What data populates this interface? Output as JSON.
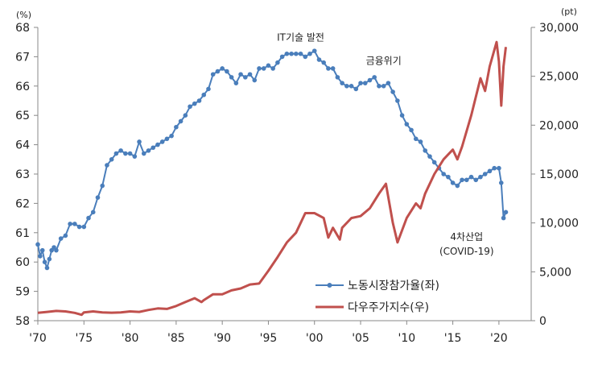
{
  "chart_data": {
    "type": "line",
    "left_unit": "(%)",
    "right_unit": "(pt)",
    "x_ticks": [
      "'70",
      "'75",
      "'80",
      "'85",
      "'90",
      "'95",
      "'00",
      "'05",
      "'10",
      "'15",
      "'20"
    ],
    "x_range": [
      1970,
      2023.5
    ],
    "y_left": {
      "range": [
        58,
        68
      ],
      "ticks": [
        "58",
        "59",
        "60",
        "61",
        "62",
        "63",
        "64",
        "65",
        "66",
        "67",
        "68"
      ]
    },
    "y_right": {
      "range": [
        0,
        30000
      ],
      "ticks": [
        "0",
        "5,000",
        "10,000",
        "15,000",
        "20,000",
        "25,000",
        "30,000"
      ]
    },
    "grid": false,
    "legend_position": "bottom-right",
    "annotations": [
      {
        "text": "IT기술 발전",
        "x": 1998.5,
        "y": 67.55
      },
      {
        "text": "금융위기",
        "x": 2007.5,
        "y": 66.75
      },
      {
        "text": "4차산업",
        "x": 2016.5,
        "y": 60.75
      },
      {
        "text": "(COVID-19)",
        "x": 2016.5,
        "y": 60.25
      }
    ],
    "series": [
      {
        "name": "노동시장참가율(좌)",
        "axis": "left",
        "color": "#4A7EBB",
        "marker": true,
        "x": [
          1970.0,
          1970.25,
          1970.5,
          1970.75,
          1971.0,
          1971.25,
          1971.5,
          1971.75,
          1972.0,
          1972.5,
          1973.0,
          1973.5,
          1974.0,
          1974.5,
          1975.0,
          1975.5,
          1976.0,
          1976.5,
          1977.0,
          1977.5,
          1978.0,
          1978.5,
          1979.0,
          1979.5,
          1980.0,
          1980.5,
          1981.0,
          1981.5,
          1982.0,
          1982.5,
          1983.0,
          1983.5,
          1984.0,
          1984.5,
          1985.0,
          1985.5,
          1986.0,
          1986.5,
          1987.0,
          1987.5,
          1988.0,
          1988.5,
          1989.0,
          1989.5,
          1990.0,
          1990.5,
          1991.0,
          1991.5,
          1992.0,
          1992.5,
          1993.0,
          1993.5,
          1994.0,
          1994.5,
          1995.0,
          1995.5,
          1996.0,
          1996.5,
          1997.0,
          1997.5,
          1998.0,
          1998.5,
          1999.0,
          1999.5,
          2000.0,
          2000.5,
          2001.0,
          2001.5,
          2002.0,
          2002.5,
          2003.0,
          2003.5,
          2004.0,
          2004.5,
          2005.0,
          2005.5,
          2006.0,
          2006.5,
          2007.0,
          2007.5,
          2008.0,
          2008.5,
          2009.0,
          2009.5,
          2010.0,
          2010.5,
          2011.0,
          2011.5,
          2012.0,
          2012.5,
          2013.0,
          2013.5,
          2014.0,
          2014.5,
          2015.0,
          2015.5,
          2016.0,
          2016.5,
          2017.0,
          2017.5,
          2018.0,
          2018.5,
          2019.0,
          2019.5,
          2020.0,
          2020.25,
          2020.5,
          2020.75
        ],
        "values": [
          60.6,
          60.2,
          60.4,
          60.0,
          59.8,
          60.1,
          60.4,
          60.5,
          60.4,
          60.8,
          60.9,
          61.3,
          61.3,
          61.2,
          61.2,
          61.5,
          61.7,
          62.2,
          62.6,
          63.3,
          63.5,
          63.7,
          63.8,
          63.7,
          63.7,
          63.6,
          64.1,
          63.7,
          63.8,
          63.9,
          64.0,
          64.1,
          64.2,
          64.3,
          64.6,
          64.8,
          65.0,
          65.3,
          65.4,
          65.5,
          65.7,
          65.9,
          66.4,
          66.5,
          66.6,
          66.5,
          66.3,
          66.1,
          66.4,
          66.3,
          66.4,
          66.2,
          66.6,
          66.6,
          66.7,
          66.6,
          66.8,
          67.0,
          67.1,
          67.1,
          67.1,
          67.1,
          67.0,
          67.1,
          67.2,
          66.9,
          66.8,
          66.6,
          66.6,
          66.3,
          66.1,
          66.0,
          66.0,
          65.9,
          66.1,
          66.1,
          66.2,
          66.3,
          66.0,
          66.0,
          66.1,
          65.8,
          65.5,
          65.0,
          64.7,
          64.5,
          64.2,
          64.1,
          63.8,
          63.6,
          63.4,
          63.2,
          63.0,
          62.9,
          62.7,
          62.6,
          62.8,
          62.8,
          62.9,
          62.8,
          62.9,
          63.0,
          63.1,
          63.2,
          63.2,
          62.7,
          61.5,
          61.7
        ]
      },
      {
        "name": "다우주가지수(우)",
        "axis": "right",
        "color": "#C0504D",
        "marker": false,
        "x": [
          1970.0,
          1971.0,
          1972.0,
          1973.0,
          1974.0,
          1974.75,
          1975.0,
          1976.0,
          1977.0,
          1978.0,
          1979.0,
          1980.0,
          1981.0,
          1982.0,
          1983.0,
          1984.0,
          1985.0,
          1986.0,
          1987.0,
          1987.75,
          1988.0,
          1989.0,
          1990.0,
          1991.0,
          1992.0,
          1993.0,
          1994.0,
          1995.0,
          1996.0,
          1997.0,
          1998.0,
          1999.0,
          2000.0,
          2001.0,
          2001.5,
          2002.0,
          2002.75,
          2003.0,
          2004.0,
          2005.0,
          2006.0,
          2007.0,
          2007.75,
          2008.5,
          2009.0,
          2010.0,
          2011.0,
          2011.5,
          2012.0,
          2013.0,
          2014.0,
          2015.0,
          2015.5,
          2016.0,
          2017.0,
          2018.0,
          2018.5,
          2019.0,
          2019.75,
          2020.0,
          2020.25,
          2020.5,
          2020.75
        ],
        "values": [
          800,
          900,
          1000,
          950,
          800,
          600,
          850,
          950,
          850,
          820,
          850,
          950,
          900,
          1100,
          1250,
          1200,
          1500,
          1900,
          2300,
          1900,
          2100,
          2700,
          2700,
          3100,
          3300,
          3700,
          3800,
          5100,
          6500,
          8000,
          9000,
          11000,
          11000,
          10500,
          8500,
          9500,
          8300,
          9500,
          10500,
          10700,
          11500,
          13000,
          14000,
          10000,
          8000,
          10500,
          12000,
          11500,
          13000,
          15000,
          16500,
          17500,
          16500,
          17800,
          21000,
          24800,
          23500,
          26000,
          28500,
          26500,
          22000,
          26000,
          28000
        ]
      }
    ]
  }
}
